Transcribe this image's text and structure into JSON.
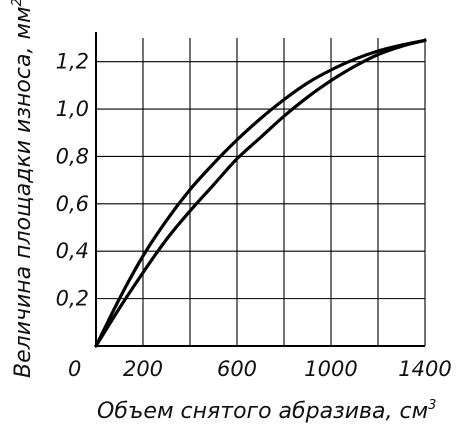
{
  "chart_data": {
    "type": "line",
    "xlabel": "Объем снятого абразива, см",
    "xlabel_superscript": "3",
    "ylabel": "Величина площадки износа, мм",
    "ylabel_superscript": "2",
    "origin_label": "0",
    "xlim": [
      0,
      1400
    ],
    "ylim": [
      0,
      1.3
    ],
    "x_ticks": [
      {
        "value": 200,
        "label": "200"
      },
      {
        "value": 600,
        "label": "600"
      },
      {
        "value": 1000,
        "label": "1000"
      },
      {
        "value": 1400,
        "label": "1400"
      }
    ],
    "y_ticks": [
      {
        "value": 0.2,
        "label": "0,2"
      },
      {
        "value": 0.4,
        "label": "0,4"
      },
      {
        "value": 0.6,
        "label": "0,6"
      },
      {
        "value": 0.8,
        "label": "0,8"
      },
      {
        "value": 1.0,
        "label": "1,0"
      },
      {
        "value": 1.2,
        "label": "1,2"
      }
    ],
    "grid_x": [
      200,
      400,
      600,
      800,
      1000,
      1200
    ],
    "grid_y": [
      0.2,
      0.4,
      0.6,
      0.8,
      1.0,
      1.2
    ],
    "grid": true,
    "series": [
      {
        "x": [
          0,
          100,
          200,
          300,
          400,
          500,
          600,
          700,
          800,
          900,
          1000,
          1100,
          1200,
          1300,
          1400
        ],
        "y": [
          0,
          0.2,
          0.38,
          0.53,
          0.66,
          0.77,
          0.87,
          0.96,
          1.04,
          1.11,
          1.165,
          1.21,
          1.245,
          1.27,
          1.29
        ]
      },
      {
        "x": [
          0,
          100,
          200,
          300,
          400,
          500,
          600,
          700,
          800,
          900,
          1000,
          1100,
          1200,
          1300,
          1400
        ],
        "y": [
          0,
          0.16,
          0.31,
          0.45,
          0.57,
          0.68,
          0.79,
          0.88,
          0.97,
          1.05,
          1.12,
          1.18,
          1.23,
          1.265,
          1.29
        ]
      }
    ]
  }
}
